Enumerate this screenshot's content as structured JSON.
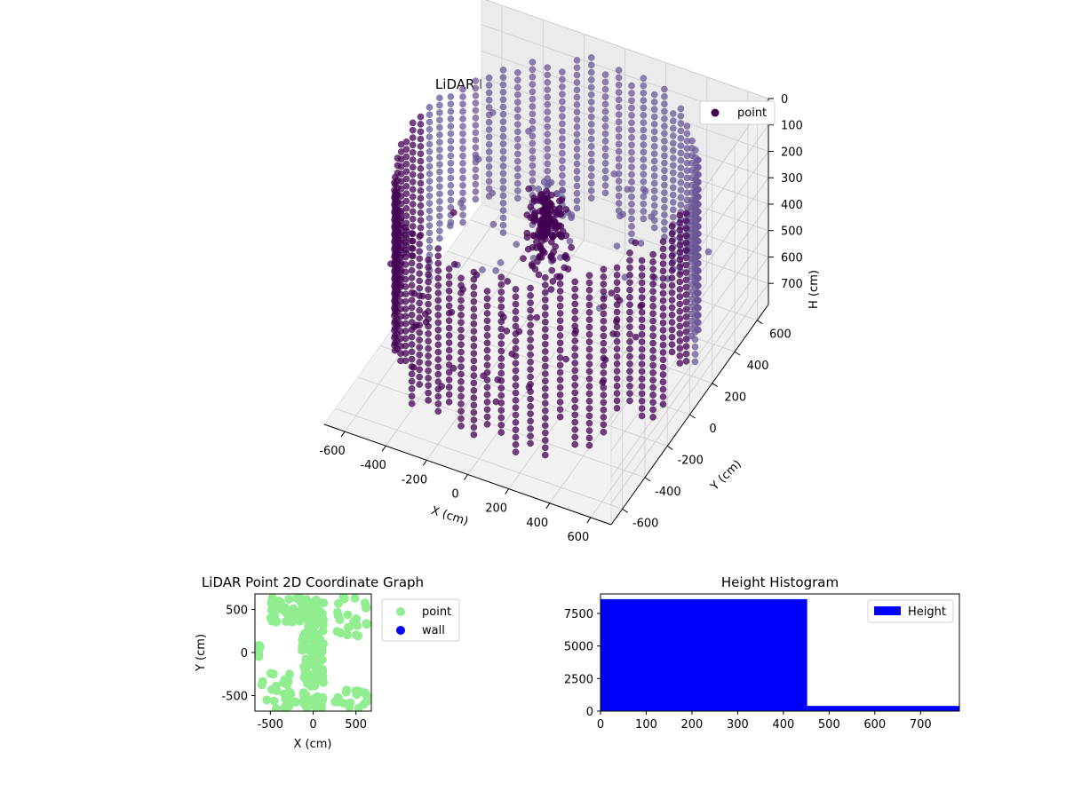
{
  "chart_data": [
    {
      "type": "scatter3d",
      "title": "LiDAR Point 3D Coordinate Graph",
      "xlabel": "X (cm)",
      "ylabel": "Y (cm)",
      "zlabel": "H (cm)",
      "xlim": [
        -700,
        700
      ],
      "ylim": [
        -700,
        700
      ],
      "zlim": [
        0,
        780
      ],
      "z_inverted": true,
      "xticks": [
        "-600",
        "-400",
        "-200",
        "0",
        "200",
        "400",
        "600"
      ],
      "yticks": [
        "-600",
        "-400",
        "-200",
        "0",
        "200",
        "400",
        "600"
      ],
      "zticks": [
        "0",
        "100",
        "200",
        "300",
        "400",
        "500",
        "600",
        "700"
      ],
      "legend": {
        "placement": "top-right",
        "entries": [
          {
            "name": "point",
            "color": "#440154"
          }
        ]
      },
      "grid": true,
      "point_color": "#440154",
      "wall_radius": 650,
      "wall_height_range": [
        0,
        700
      ],
      "central_cluster": {
        "x": 0,
        "y": 0,
        "h_range": [
          150,
          300
        ]
      }
    },
    {
      "type": "scatter",
      "title": "LiDAR Point 2D Coordinate Graph",
      "xlabel": "X (cm)",
      "ylabel": "Y (cm)",
      "xlim": [
        -680,
        680
      ],
      "ylim": [
        -680,
        680
      ],
      "xticks": [
        "-500",
        "0",
        "500"
      ],
      "yticks": [
        "-500",
        "0",
        "500"
      ],
      "legend": {
        "placement": "outside-right",
        "entries": [
          {
            "name": "point",
            "color": "#90ee90"
          },
          {
            "name": "wall",
            "color": "#0000ff"
          }
        ]
      },
      "series": [
        {
          "name": "point",
          "color": "#90ee90"
        },
        {
          "name": "wall",
          "color": "#0000ff"
        }
      ]
    },
    {
      "type": "bar",
      "title": "Height Histogram",
      "xlim": [
        0,
        785
      ],
      "ylim": [
        0,
        9000
      ],
      "xticks": [
        "0",
        "100",
        "200",
        "300",
        "400",
        "500",
        "600",
        "700"
      ],
      "yticks": [
        "0",
        "2500",
        "5000",
        "7500"
      ],
      "bins": [
        {
          "x0": 0,
          "x1": 452,
          "count": 8600
        },
        {
          "x0": 452,
          "x1": 785,
          "count": 400
        }
      ],
      "legend": {
        "placement": "top-right",
        "entries": [
          {
            "name": "Height",
            "color": "#0000ff"
          }
        ]
      },
      "color": "#0000ff"
    }
  ]
}
